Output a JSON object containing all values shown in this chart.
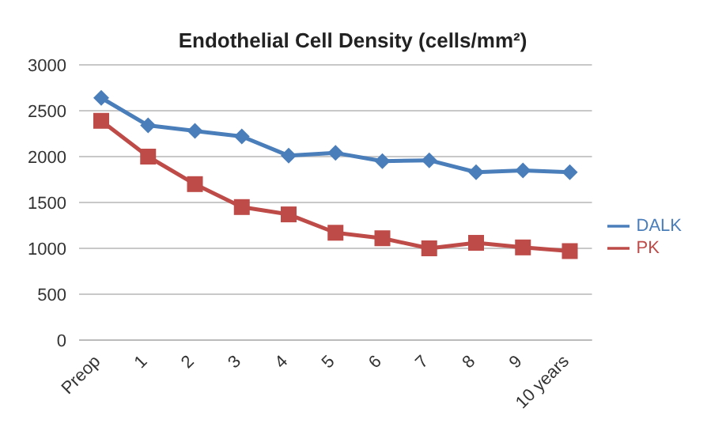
{
  "chart_data": {
    "type": "line",
    "title": "Endothelial Cell Density (cells/mm²)",
    "categories": [
      "Preop",
      "1",
      "2",
      "3",
      "4",
      "5",
      "6",
      "7",
      "8",
      "9",
      "10 years"
    ],
    "series": [
      {
        "name": "DALK",
        "color": "#4a7ebb",
        "marker": "diamond",
        "values": [
          2640,
          2340,
          2280,
          2220,
          2010,
          2040,
          1950,
          1960,
          1830,
          1850,
          1830
        ]
      },
      {
        "name": "PK",
        "color": "#be4b48",
        "marker": "square",
        "values": [
          2390,
          2000,
          1700,
          1450,
          1370,
          1170,
          1110,
          1000,
          1060,
          1010,
          970
        ]
      }
    ],
    "ylim": [
      0,
      3000
    ],
    "yticks": [
      0,
      500,
      1000,
      1500,
      2000,
      2500,
      3000
    ],
    "grid": "y",
    "legend": "right"
  }
}
